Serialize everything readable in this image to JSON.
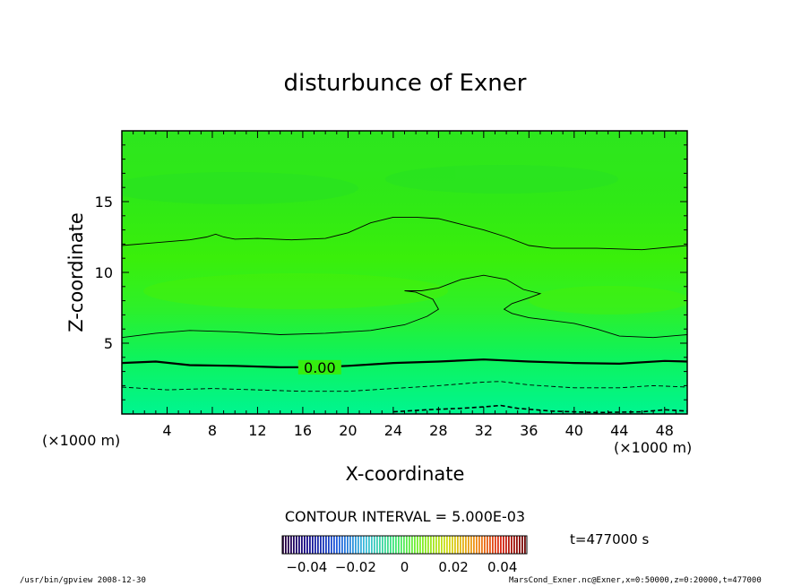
{
  "chart_data": {
    "type": "heatmap",
    "title": "disturbunce of Exner",
    "xlabel": "X-coordinate",
    "ylabel": "Z-coordinate",
    "x_unit": "(×1000 m)",
    "x_unit_bottom": "(×1000 m)",
    "xlim": [
      0,
      50
    ],
    "ylim": [
      0,
      20
    ],
    "xticks": [
      4,
      8,
      12,
      16,
      20,
      24,
      28,
      32,
      36,
      40,
      44,
      48
    ],
    "yticks": [
      5,
      10,
      15
    ],
    "contour_interval": "CONTOUR INTERVAL = 5.000E-03",
    "zero_label": "0.00",
    "time_label": "t=477000 s",
    "colorbar": {
      "range": [
        -0.05,
        0.05
      ],
      "ticks": [
        -0.04,
        -0.02,
        0,
        0.02,
        0.04
      ],
      "tick_labels": [
        "−0.04",
        "−0.02",
        "0",
        "0.02",
        "0.04"
      ]
    },
    "contours": [
      {
        "value": 0.005,
        "style": "solid-thin",
        "points": [
          [
            0,
            11.9
          ],
          [
            3,
            12.1
          ],
          [
            6,
            12.3
          ],
          [
            7.5,
            12.5
          ],
          [
            8.3,
            12.7
          ],
          [
            9,
            12.5
          ],
          [
            10,
            12.35
          ],
          [
            12,
            12.4
          ],
          [
            15,
            12.3
          ],
          [
            18,
            12.4
          ],
          [
            20,
            12.8
          ],
          [
            22,
            13.5
          ],
          [
            24,
            13.9
          ],
          [
            26,
            13.9
          ],
          [
            28,
            13.8
          ],
          [
            30,
            13.4
          ],
          [
            32,
            13.0
          ],
          [
            34,
            12.5
          ],
          [
            36,
            11.9
          ],
          [
            38,
            11.7
          ],
          [
            42,
            11.7
          ],
          [
            46,
            11.6
          ],
          [
            50,
            11.9
          ]
        ]
      },
      {
        "value": 0.005,
        "style": "solid-thin",
        "points": [
          [
            0,
            5.4
          ],
          [
            3,
            5.7
          ],
          [
            6,
            5.9
          ],
          [
            10,
            5.8
          ],
          [
            14,
            5.6
          ],
          [
            18,
            5.7
          ],
          [
            22,
            5.9
          ],
          [
            25,
            6.3
          ],
          [
            27,
            6.9
          ],
          [
            28,
            7.4
          ],
          [
            27.5,
            8.1
          ],
          [
            26,
            8.6
          ],
          [
            25,
            8.7
          ],
          [
            26.5,
            8.7
          ],
          [
            28,
            8.9
          ],
          [
            30,
            9.5
          ],
          [
            32,
            9.8
          ],
          [
            34,
            9.5
          ],
          [
            35.5,
            8.8
          ],
          [
            37,
            8.5
          ],
          [
            36,
            8.2
          ],
          [
            34.5,
            7.8
          ],
          [
            33.8,
            7.4
          ],
          [
            34.5,
            7.1
          ],
          [
            36,
            6.8
          ],
          [
            38,
            6.6
          ],
          [
            40,
            6.4
          ],
          [
            42,
            6.0
          ],
          [
            44,
            5.5
          ],
          [
            47,
            5.4
          ],
          [
            50,
            5.6
          ]
        ]
      },
      {
        "value": 0,
        "style": "solid-bold",
        "points": [
          [
            0,
            3.6
          ],
          [
            3,
            3.7
          ],
          [
            6,
            3.45
          ],
          [
            10,
            3.4
          ],
          [
            14,
            3.3
          ],
          [
            17,
            3.3
          ],
          [
            20,
            3.4
          ],
          [
            24,
            3.6
          ],
          [
            28,
            3.7
          ],
          [
            32,
            3.85
          ],
          [
            36,
            3.7
          ],
          [
            40,
            3.6
          ],
          [
            44,
            3.55
          ],
          [
            48,
            3.75
          ],
          [
            50,
            3.7
          ]
        ]
      },
      {
        "value": -0.005,
        "style": "dashed",
        "points": [
          [
            0,
            1.9
          ],
          [
            4,
            1.7
          ],
          [
            8,
            1.8
          ],
          [
            12,
            1.7
          ],
          [
            16,
            1.6
          ],
          [
            20,
            1.6
          ],
          [
            24,
            1.8
          ],
          [
            28,
            2.0
          ],
          [
            32,
            2.25
          ],
          [
            33.5,
            2.3
          ],
          [
            36,
            2.05
          ],
          [
            40,
            1.85
          ],
          [
            44,
            1.85
          ],
          [
            47,
            2.0
          ],
          [
            50,
            1.9
          ]
        ]
      },
      {
        "value": -0.01,
        "style": "dashed",
        "points": [
          [
            24,
            0.15
          ],
          [
            27,
            0.3
          ],
          [
            30,
            0.4
          ],
          [
            32,
            0.5
          ],
          [
            33.5,
            0.6
          ],
          [
            35,
            0.4
          ],
          [
            38,
            0.2
          ],
          [
            42,
            0.1
          ],
          [
            46,
            0.15
          ],
          [
            48,
            0.3
          ],
          [
            50,
            0.2
          ]
        ]
      }
    ]
  },
  "footer": {
    "left": "/usr/bin/gpview  2008-12-30",
    "right": "MarsCond_Exner.nc@Exner,x=0:50000,z=0:20000,t=477000"
  },
  "colors": {
    "top": "#2ae51d",
    "middle": "#33f200",
    "bottom": "#00f48c"
  }
}
